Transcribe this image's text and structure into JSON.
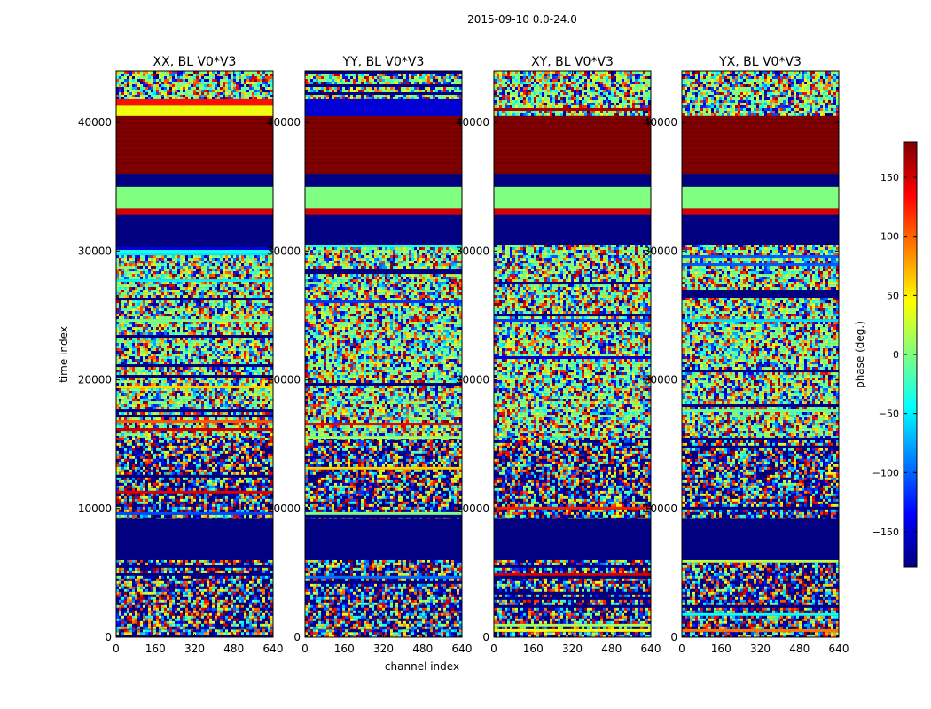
{
  "figure": {
    "suptitle": "2015-09-10 0.0-24.0",
    "xlabel": "channel index",
    "ylabel": "time index"
  },
  "colorbar": {
    "label": "phase (deg.)",
    "colormap": "jet",
    "range": [
      -180,
      180
    ],
    "ticks": [
      150,
      100,
      50,
      0,
      -50,
      -100,
      -150
    ],
    "tick_labels": [
      "150",
      "100",
      "50",
      "0",
      "−50",
      "−100",
      "−150"
    ],
    "colors": [
      "#00007f",
      "#0000ff",
      "#007fff",
      "#00ffff",
      "#7fff7f",
      "#ffff00",
      "#ff7f00",
      "#ff0000",
      "#7f0000"
    ]
  },
  "chart_data": [
    {
      "type": "heatmap",
      "title": "XX, BL V0*V3",
      "xlim": [
        0,
        640
      ],
      "ylim": [
        0,
        44000
      ],
      "xticks": [
        0,
        160,
        320,
        480,
        640
      ],
      "xtick_labels": [
        "0",
        "160",
        "320",
        "480",
        "640"
      ],
      "yticks": [
        0,
        10000,
        20000,
        30000,
        40000
      ],
      "ytick_labels": [
        "0",
        "10000",
        "20000",
        "30000",
        "40000"
      ],
      "value": "phase (deg.)",
      "bands": [
        {
          "t": [
            0,
            600
          ],
          "kind": "noise",
          "phase": -180
        },
        {
          "t": [
            600,
            6000
          ],
          "kind": "noise",
          "phase": -180
        },
        {
          "t": [
            6000,
            9200
          ],
          "kind": "solid",
          "phase": -180
        },
        {
          "t": [
            9200,
            15500
          ],
          "kind": "noise",
          "phase": -180
        },
        {
          "t": [
            15500,
            30500
          ],
          "kind": "noise",
          "phase": 0
        },
        {
          "t": [
            30500,
            32800
          ],
          "kind": "solid",
          "phase": -180
        },
        {
          "t": [
            32800,
            33300
          ],
          "kind": "solid",
          "phase": 150
        },
        {
          "t": [
            33300,
            35000
          ],
          "kind": "solid",
          "phase": 0
        },
        {
          "t": [
            35000,
            36000
          ],
          "kind": "solid",
          "phase": -180
        },
        {
          "t": [
            36000,
            40500
          ],
          "kind": "solid",
          "phase": 180
        },
        {
          "t": [
            40500,
            41300
          ],
          "kind": "solid",
          "phase": 40
        },
        {
          "t": [
            41300,
            41800
          ],
          "kind": "solid",
          "phase": 130
        },
        {
          "t": [
            41800,
            44000
          ],
          "kind": "noise",
          "phase": 0
        }
      ]
    },
    {
      "type": "heatmap",
      "title": "YY, BL V0*V3",
      "xlim": [
        0,
        640
      ],
      "ylim": [
        0,
        44000
      ],
      "xticks": [
        0,
        160,
        320,
        480,
        640
      ],
      "xtick_labels": [
        "0",
        "160",
        "320",
        "480",
        "640"
      ],
      "yticks": [
        0,
        10000,
        20000,
        30000,
        40000
      ],
      "ytick_labels": [
        "0",
        "10000",
        "20000",
        "30000",
        "40000"
      ],
      "value": "phase (deg.)",
      "bands": [
        {
          "t": [
            0,
            600
          ],
          "kind": "noise",
          "phase": -180
        },
        {
          "t": [
            600,
            6000
          ],
          "kind": "noise",
          "phase": -180
        },
        {
          "t": [
            6000,
            9200
          ],
          "kind": "solid",
          "phase": -180
        },
        {
          "t": [
            9200,
            15500
          ],
          "kind": "noise",
          "phase": -180
        },
        {
          "t": [
            15500,
            30500
          ],
          "kind": "noise",
          "phase": 0
        },
        {
          "t": [
            30500,
            32800
          ],
          "kind": "solid",
          "phase": -180
        },
        {
          "t": [
            32800,
            33300
          ],
          "kind": "solid",
          "phase": 150
        },
        {
          "t": [
            33300,
            35000
          ],
          "kind": "solid",
          "phase": 0
        },
        {
          "t": [
            35000,
            36000
          ],
          "kind": "solid",
          "phase": -180
        },
        {
          "t": [
            36000,
            40500
          ],
          "kind": "solid",
          "phase": 180
        },
        {
          "t": [
            40500,
            41800
          ],
          "kind": "solid",
          "phase": -150
        },
        {
          "t": [
            41800,
            44000
          ],
          "kind": "noise",
          "phase": 0
        }
      ]
    },
    {
      "type": "heatmap",
      "title": "XY, BL V0*V3",
      "xlim": [
        0,
        640
      ],
      "ylim": [
        0,
        44000
      ],
      "xticks": [
        0,
        160,
        320,
        480,
        640
      ],
      "xtick_labels": [
        "0",
        "160",
        "320",
        "480",
        "640"
      ],
      "yticks": [
        0,
        10000,
        20000,
        30000,
        40000
      ],
      "ytick_labels": [
        "0",
        "10000",
        "20000",
        "30000",
        "40000"
      ],
      "value": "phase (deg.)",
      "bands": [
        {
          "t": [
            0,
            600
          ],
          "kind": "noise",
          "phase": -180
        },
        {
          "t": [
            600,
            6000
          ],
          "kind": "noise",
          "phase": -180
        },
        {
          "t": [
            6000,
            9200
          ],
          "kind": "solid",
          "phase": -180
        },
        {
          "t": [
            9200,
            15500
          ],
          "kind": "noise",
          "phase": -180
        },
        {
          "t": [
            15500,
            30500
          ],
          "kind": "noise",
          "phase": 0
        },
        {
          "t": [
            30500,
            32800
          ],
          "kind": "solid",
          "phase": -180
        },
        {
          "t": [
            32800,
            33300
          ],
          "kind": "solid",
          "phase": 150
        },
        {
          "t": [
            33300,
            35000
          ],
          "kind": "solid",
          "phase": 0
        },
        {
          "t": [
            35000,
            36000
          ],
          "kind": "solid",
          "phase": -180
        },
        {
          "t": [
            36000,
            40500
          ],
          "kind": "solid",
          "phase": 180
        },
        {
          "t": [
            40500,
            44000
          ],
          "kind": "noise",
          "phase": 0
        }
      ]
    },
    {
      "type": "heatmap",
      "title": "YX, BL V0*V3",
      "xlim": [
        0,
        640
      ],
      "ylim": [
        0,
        44000
      ],
      "xticks": [
        0,
        160,
        320,
        480,
        640
      ],
      "xtick_labels": [
        "0",
        "160",
        "320",
        "480",
        "640"
      ],
      "yticks": [
        0,
        10000,
        20000,
        30000,
        40000
      ],
      "ytick_labels": [
        "0",
        "10000",
        "20000",
        "30000",
        "40000"
      ],
      "value": "phase (deg.)",
      "bands": [
        {
          "t": [
            0,
            600
          ],
          "kind": "noise",
          "phase": -180
        },
        {
          "t": [
            600,
            6000
          ],
          "kind": "noise",
          "phase": -180
        },
        {
          "t": [
            6000,
            9200
          ],
          "kind": "solid",
          "phase": -180
        },
        {
          "t": [
            9200,
            15500
          ],
          "kind": "noise",
          "phase": -180
        },
        {
          "t": [
            15500,
            30500
          ],
          "kind": "noise",
          "phase": 0
        },
        {
          "t": [
            30500,
            32800
          ],
          "kind": "solid",
          "phase": -180
        },
        {
          "t": [
            32800,
            33300
          ],
          "kind": "solid",
          "phase": 150
        },
        {
          "t": [
            33300,
            35000
          ],
          "kind": "solid",
          "phase": 0
        },
        {
          "t": [
            35000,
            36000
          ],
          "kind": "solid",
          "phase": -180
        },
        {
          "t": [
            36000,
            40500
          ],
          "kind": "solid",
          "phase": 180
        },
        {
          "t": [
            40500,
            44000
          ],
          "kind": "noise",
          "phase": 0
        }
      ]
    }
  ]
}
